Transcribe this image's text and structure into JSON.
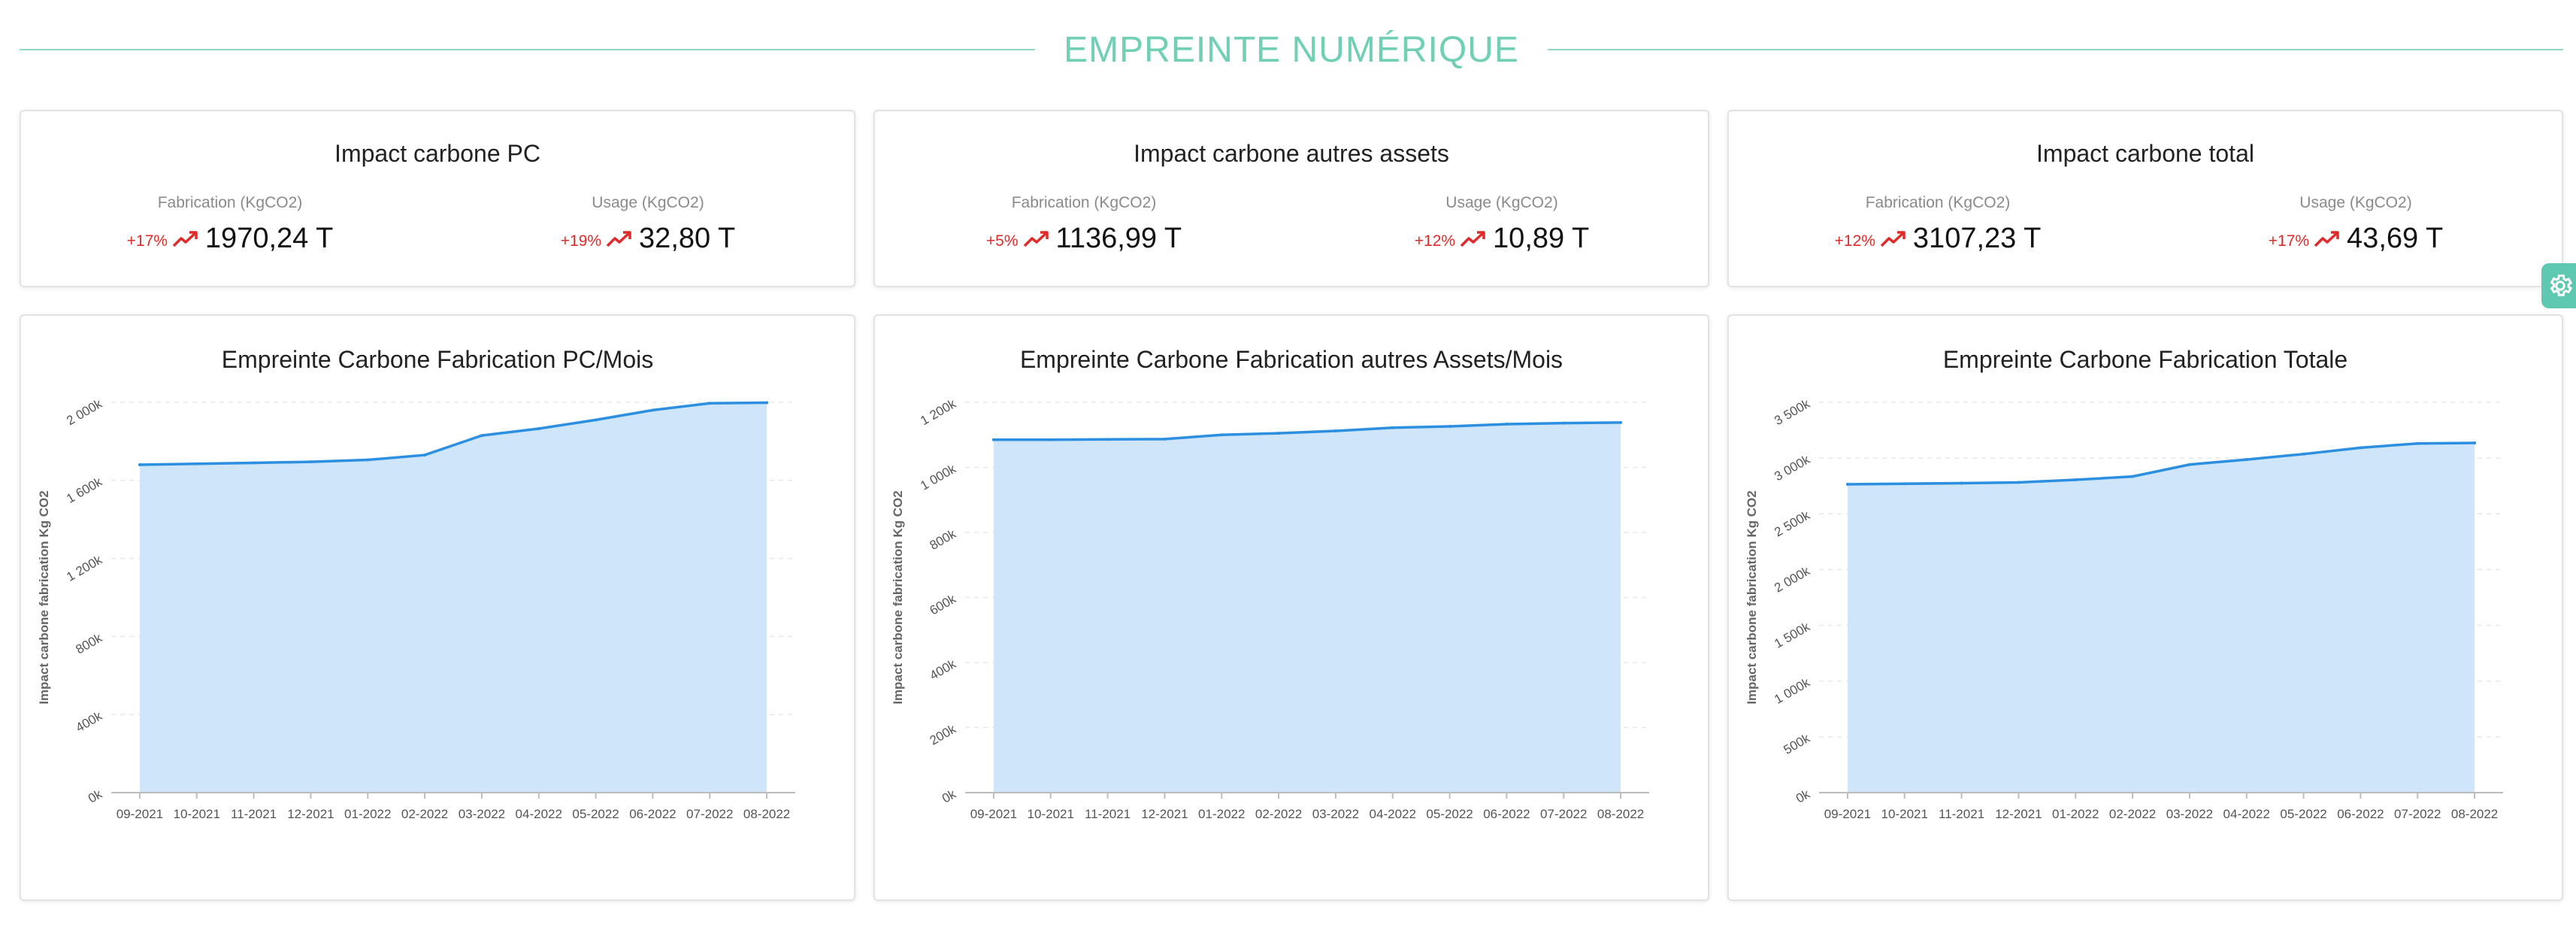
{
  "header": {
    "title": "EMPREINTE NUMÉRIQUE"
  },
  "colors": {
    "accent": "#71cfb4",
    "negative": "#e02b2b",
    "line": "#2d8fe0",
    "area": "#cfe5fa"
  },
  "kpis": [
    {
      "title": "Impact carbone PC",
      "fabrication": {
        "label": "Fabrication (KgCO2)",
        "pct": "+17%",
        "value": "1970,24 T"
      },
      "usage": {
        "label": "Usage (KgCO2)",
        "pct": "+19%",
        "value": "32,80 T"
      }
    },
    {
      "title": "Impact carbone autres assets",
      "fabrication": {
        "label": "Fabrication (KgCO2)",
        "pct": "+5%",
        "value": "1136,99 T"
      },
      "usage": {
        "label": "Usage (KgCO2)",
        "pct": "+12%",
        "value": "10,89 T"
      }
    },
    {
      "title": "Impact carbone total",
      "fabrication": {
        "label": "Fabrication (KgCO2)",
        "pct": "+12%",
        "value": "3107,23 T"
      },
      "usage": {
        "label": "Usage (KgCO2)",
        "pct": "+17%",
        "value": "43,69 T"
      }
    }
  ],
  "chart_data": [
    {
      "type": "area",
      "title": "Empreinte Carbone Fabrication PC/Mois",
      "ylabel": "Impact carbone fabrication Kg CO2",
      "xlabel": "",
      "ylim": [
        0,
        2000000
      ],
      "yticks": [
        0,
        400000,
        800000,
        1200000,
        1600000,
        2000000
      ],
      "ytick_labels": [
        "0k",
        "400k",
        "800k",
        "1 200k",
        "1 600k",
        "2 000k"
      ],
      "categories": [
        "09-2021",
        "10-2021",
        "11-2021",
        "12-2021",
        "01-2022",
        "02-2022",
        "03-2022",
        "04-2022",
        "05-2022",
        "06-2022",
        "07-2022",
        "08-2022"
      ],
      "values": [
        1680000,
        1685000,
        1690000,
        1695000,
        1705000,
        1730000,
        1830000,
        1865000,
        1910000,
        1960000,
        1995000,
        1998000
      ],
      "grid": true
    },
    {
      "type": "area",
      "title": "Empreinte Carbone Fabrication autres Assets/Mois",
      "ylabel": "Impact carbone fabrication Kg CO2",
      "xlabel": "",
      "ylim": [
        0,
        1200000
      ],
      "yticks": [
        0,
        200000,
        400000,
        600000,
        800000,
        1000000,
        1200000
      ],
      "ytick_labels": [
        "0k",
        "200k",
        "400k",
        "600k",
        "800k",
        "1 000k",
        "1 200k"
      ],
      "categories": [
        "09-2021",
        "10-2021",
        "11-2021",
        "12-2021",
        "01-2022",
        "02-2022",
        "03-2022",
        "04-2022",
        "05-2022",
        "06-2022",
        "07-2022",
        "08-2022"
      ],
      "values": [
        1085000,
        1085000,
        1086000,
        1087000,
        1100000,
        1105000,
        1112000,
        1122000,
        1126000,
        1133000,
        1136000,
        1138000
      ],
      "grid": true
    },
    {
      "type": "area",
      "title": "Empreinte Carbone Fabrication Totale",
      "ylabel": "Impact carbone fabrication Kg CO2",
      "xlabel": "",
      "ylim": [
        0,
        3500000
      ],
      "yticks": [
        0,
        500000,
        1000000,
        1500000,
        2000000,
        2500000,
        3000000,
        3500000
      ],
      "ytick_labels": [
        "0k",
        "500k",
        "1 000k",
        "1 500k",
        "2 000k",
        "2 500k",
        "3 000k",
        "3 500k"
      ],
      "categories": [
        "09-2021",
        "10-2021",
        "11-2021",
        "12-2021",
        "01-2022",
        "02-2022",
        "03-2022",
        "04-2022",
        "05-2022",
        "06-2022",
        "07-2022",
        "08-2022"
      ],
      "values": [
        2765000,
        2770000,
        2775000,
        2782000,
        2805000,
        2835000,
        2942000,
        2987000,
        3036000,
        3093000,
        3131000,
        3136000
      ],
      "grid": true
    }
  ]
}
